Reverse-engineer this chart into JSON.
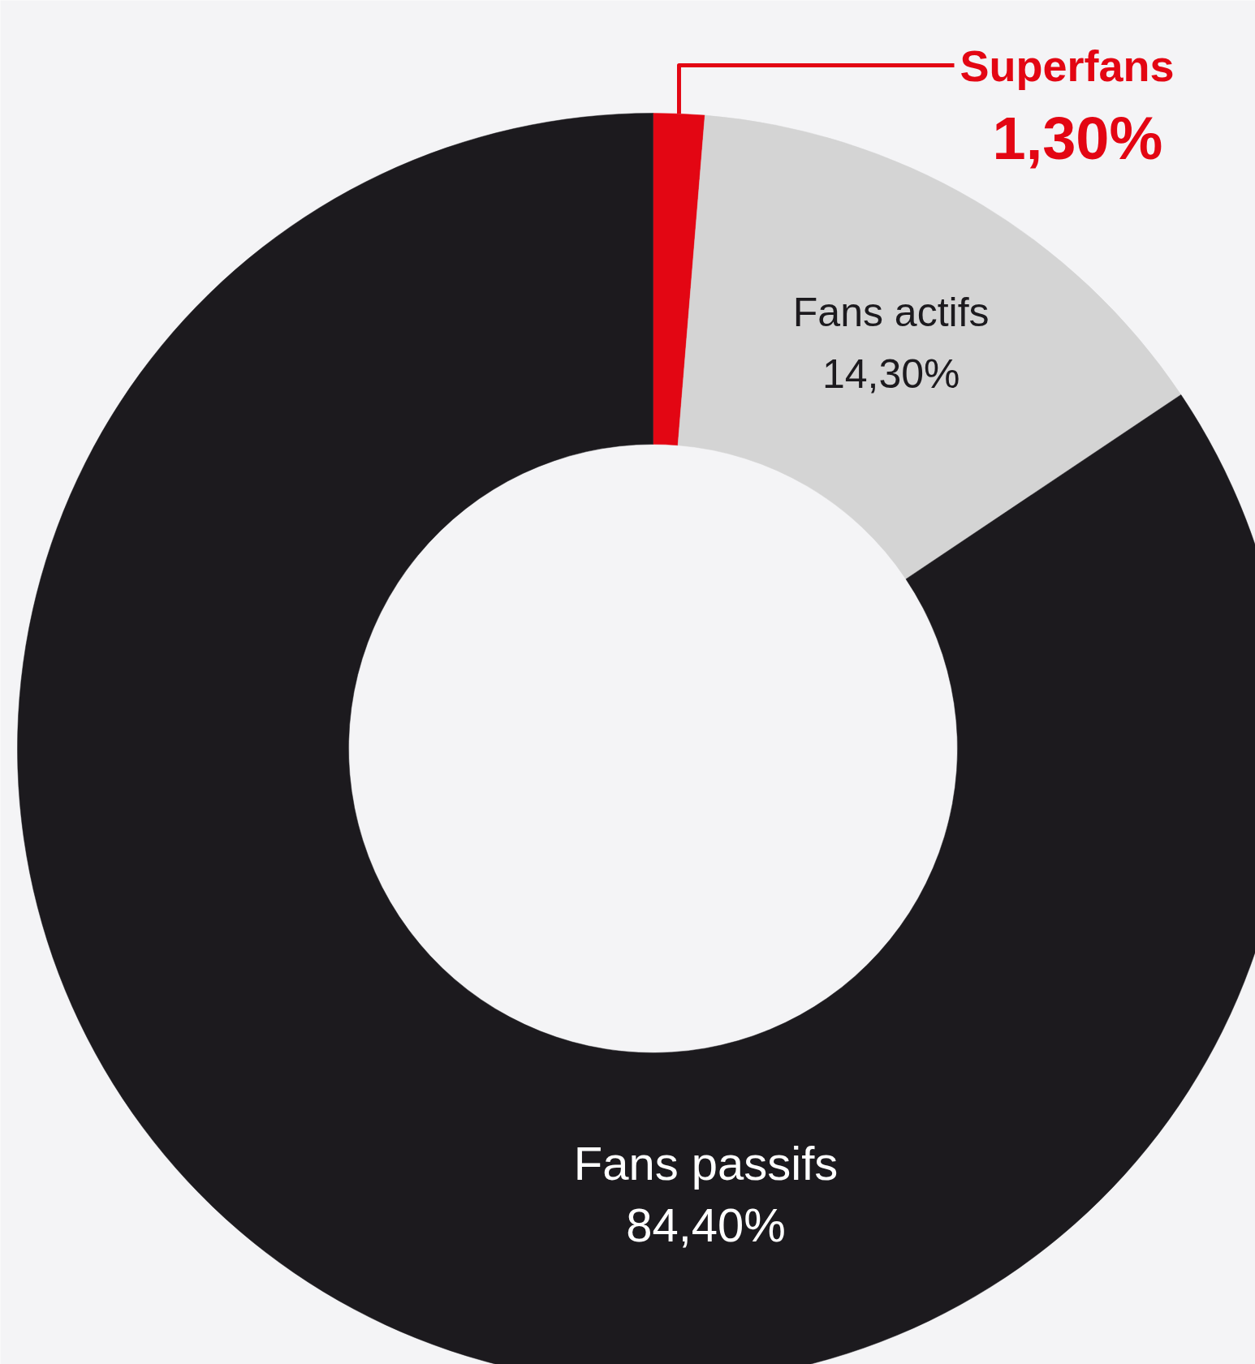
{
  "chart_data": {
    "type": "donut",
    "categories": [
      "Superfans",
      "Fans actifs",
      "Fans passifs"
    ],
    "values": [
      1.3,
      14.3,
      84.4
    ],
    "value_labels": [
      "1,30%",
      "14,30%",
      "84,40%"
    ],
    "colors": [
      "#e30613",
      "#d4d4d4",
      "#1c1a1e"
    ]
  }
}
